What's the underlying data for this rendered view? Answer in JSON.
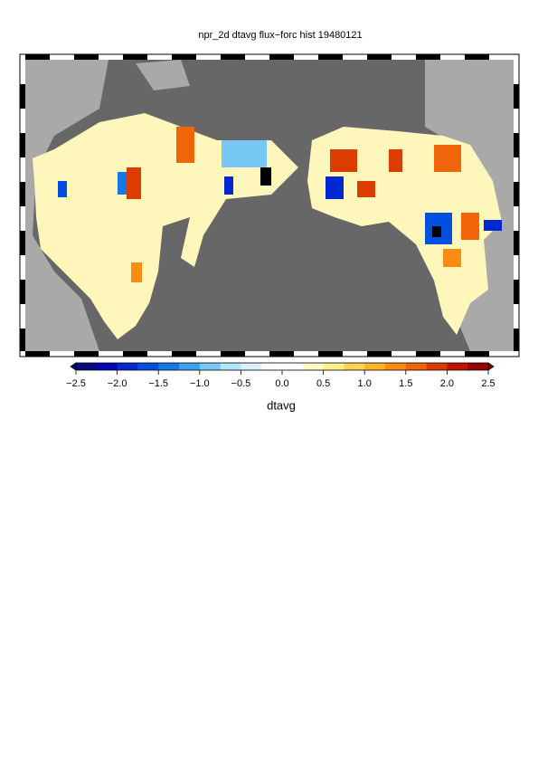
{
  "chart_data": {
    "type": "map",
    "title": "npr_2d dtavg flux−forc hist 19480121",
    "colorbar": {
      "label": "dtavg",
      "lim": [
        -2.5,
        2.5
      ],
      "ticks": [
        {
          "value": -2.5,
          "label": "−2.5"
        },
        {
          "value": -2,
          "label": "−2.0"
        },
        {
          "value": -1.5,
          "label": "−1.5"
        },
        {
          "value": -1,
          "label": "−1.0"
        },
        {
          "value": -0.5,
          "label": "−0.5"
        },
        {
          "value": 0,
          "label": "0.0"
        },
        0.5,
        {
          "value": 1,
          "label": "1.0"
        },
        1.5,
        {
          "value": 2,
          "label": "2.0"
        },
        2.5
      ],
      "colors": [
        "#0a0a80",
        "#0000b4",
        "#0028d0",
        "#0050e0",
        "#1478e6",
        "#3ca0f0",
        "#78c8f5",
        "#b4e6fa",
        "#dcf2fc",
        "#ffffff",
        "#ffffff",
        "#fffac8",
        "#fff08c",
        "#ffd250",
        "#ffb428",
        "#fa8c14",
        "#f0640a",
        "#dc3c00",
        "#be1400",
        "#960000"
      ]
    }
  }
}
